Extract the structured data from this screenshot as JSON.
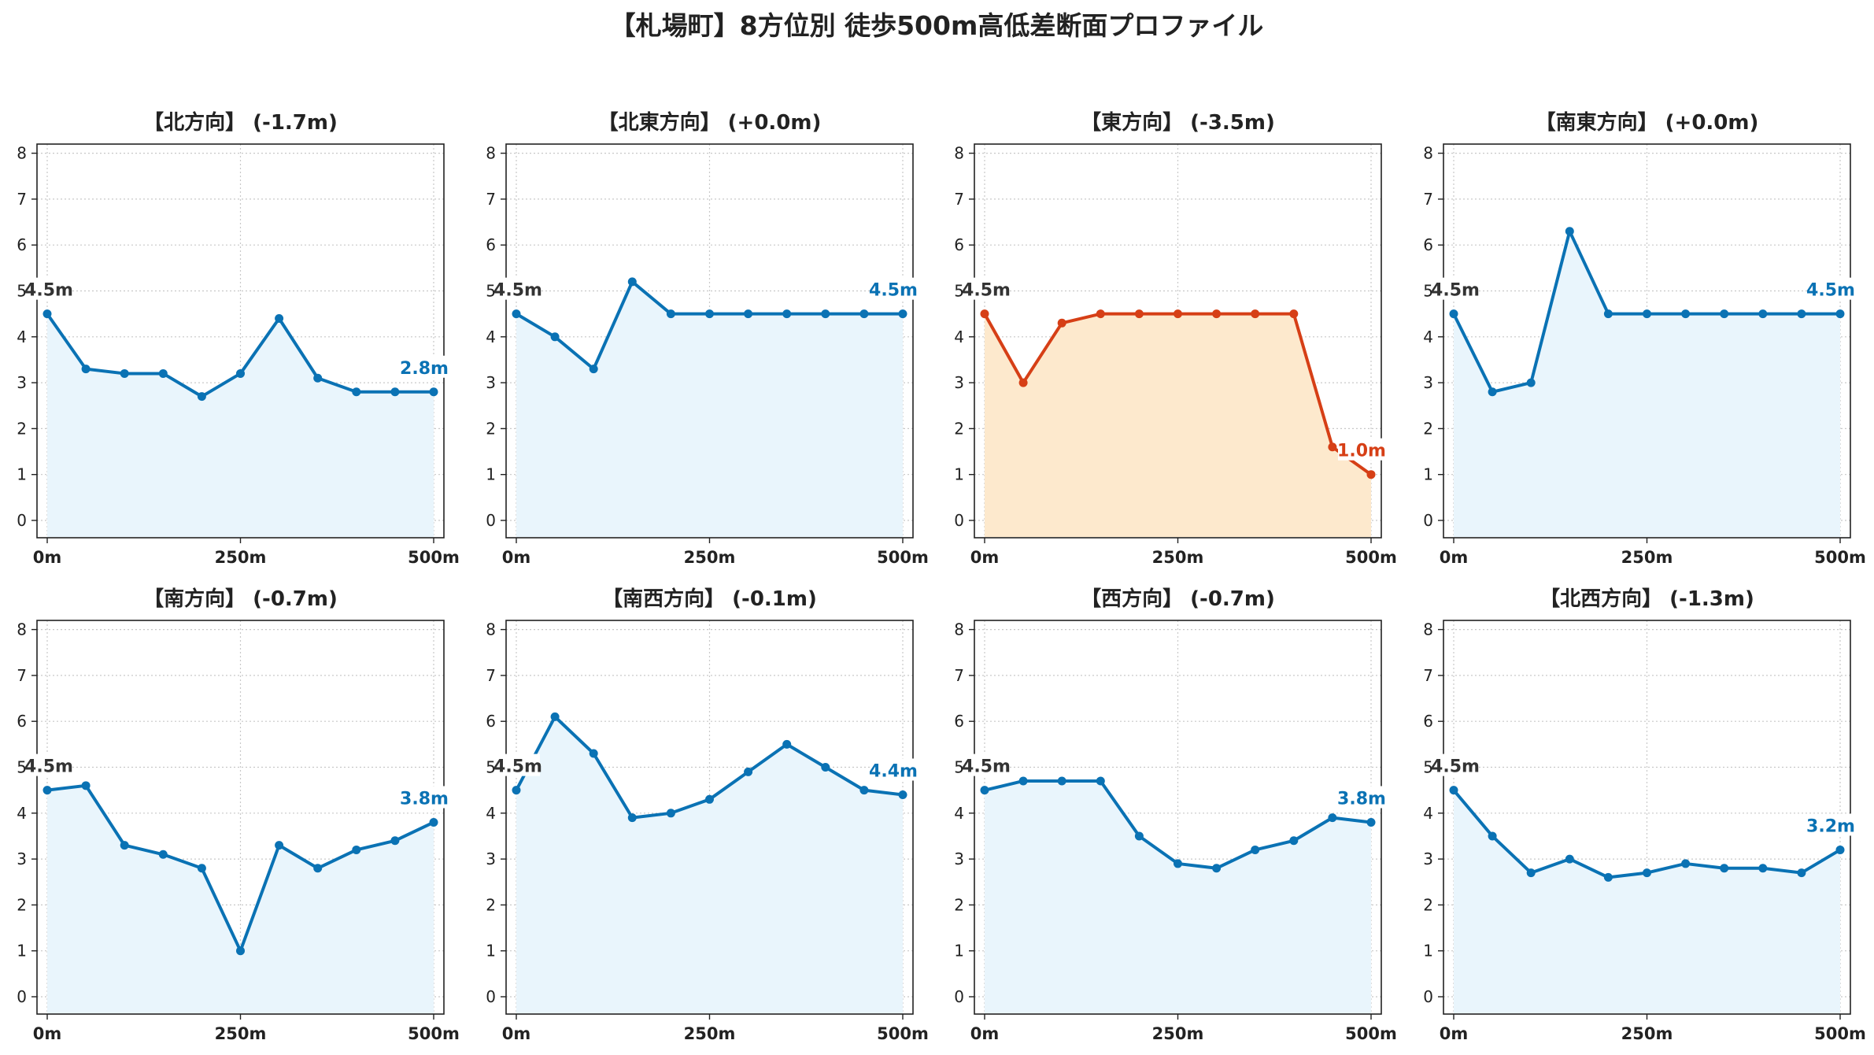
{
  "title": "【札場町】8方位別 徒歩500m高低差断面プロファイル",
  "colors": {
    "normal_line": "#0a72b4",
    "normal_fill": "#e9f5fc",
    "highlight_line": "#d63f16",
    "highlight_fill": "#fde9cd",
    "start_label": "#333333",
    "grid": "#c8c8c8"
  },
  "chart_data": [
    {
      "type": "area",
      "title": "【北方向】 (-1.7m)",
      "x": [
        0,
        50,
        100,
        150,
        200,
        250,
        300,
        350,
        400,
        450,
        500
      ],
      "values": [
        4.5,
        3.3,
        3.2,
        3.2,
        2.7,
        3.2,
        4.4,
        3.1,
        2.8,
        2.8,
        2.8
      ],
      "start_label": "4.5m",
      "end_label": "2.8m",
      "highlight": false,
      "xticks": [
        "0m",
        "250m",
        "500m"
      ],
      "yticks": [
        "0",
        "1",
        "2",
        "3",
        "4",
        "5",
        "6",
        "7",
        "8"
      ],
      "xlim": [
        0,
        500
      ],
      "ylim": [
        0,
        8
      ],
      "grid": true
    },
    {
      "type": "area",
      "title": "【北東方向】 (+0.0m)",
      "x": [
        0,
        50,
        100,
        150,
        200,
        250,
        300,
        350,
        400,
        450,
        500
      ],
      "values": [
        4.5,
        4.0,
        3.3,
        5.2,
        4.5,
        4.5,
        4.5,
        4.5,
        4.5,
        4.5,
        4.5
      ],
      "start_label": "4.5m",
      "end_label": "4.5m",
      "highlight": false,
      "xticks": [
        "0m",
        "250m",
        "500m"
      ],
      "yticks": [
        "0",
        "1",
        "2",
        "3",
        "4",
        "5",
        "6",
        "7",
        "8"
      ],
      "xlim": [
        0,
        500
      ],
      "ylim": [
        0,
        8
      ],
      "grid": true
    },
    {
      "type": "area",
      "title": "【東方向】 (-3.5m)",
      "x": [
        0,
        50,
        100,
        150,
        200,
        250,
        300,
        350,
        400,
        450,
        500
      ],
      "values": [
        4.5,
        3.0,
        4.3,
        4.5,
        4.5,
        4.5,
        4.5,
        4.5,
        4.5,
        1.6,
        1.0
      ],
      "start_label": "4.5m",
      "end_label": "1.0m",
      "highlight": true,
      "xticks": [
        "0m",
        "250m",
        "500m"
      ],
      "yticks": [
        "0",
        "1",
        "2",
        "3",
        "4",
        "5",
        "6",
        "7",
        "8"
      ],
      "xlim": [
        0,
        500
      ],
      "ylim": [
        0,
        8
      ],
      "grid": true
    },
    {
      "type": "area",
      "title": "【南東方向】 (+0.0m)",
      "x": [
        0,
        50,
        100,
        150,
        200,
        250,
        300,
        350,
        400,
        450,
        500
      ],
      "values": [
        4.5,
        2.8,
        3.0,
        6.3,
        4.5,
        4.5,
        4.5,
        4.5,
        4.5,
        4.5,
        4.5
      ],
      "start_label": "4.5m",
      "end_label": "4.5m",
      "highlight": false,
      "xticks": [
        "0m",
        "250m",
        "500m"
      ],
      "yticks": [
        "0",
        "1",
        "2",
        "3",
        "4",
        "5",
        "6",
        "7",
        "8"
      ],
      "xlim": [
        0,
        500
      ],
      "ylim": [
        0,
        8
      ],
      "grid": true
    },
    {
      "type": "area",
      "title": "【南方向】 (-0.7m)",
      "x": [
        0,
        50,
        100,
        150,
        200,
        250,
        300,
        350,
        400,
        450,
        500
      ],
      "values": [
        4.5,
        4.6,
        3.3,
        3.1,
        2.8,
        1.0,
        3.3,
        2.8,
        3.2,
        3.4,
        3.8
      ],
      "start_label": "4.5m",
      "end_label": "3.8m",
      "highlight": false,
      "xticks": [
        "0m",
        "250m",
        "500m"
      ],
      "yticks": [
        "0",
        "1",
        "2",
        "3",
        "4",
        "5",
        "6",
        "7",
        "8"
      ],
      "xlim": [
        0,
        500
      ],
      "ylim": [
        0,
        8
      ],
      "grid": true
    },
    {
      "type": "area",
      "title": "【南西方向】 (-0.1m)",
      "x": [
        0,
        50,
        100,
        150,
        200,
        250,
        300,
        350,
        400,
        450,
        500
      ],
      "values": [
        4.5,
        6.1,
        5.3,
        3.9,
        4.0,
        4.3,
        4.9,
        5.5,
        5.0,
        4.5,
        4.4
      ],
      "start_label": "4.5m",
      "end_label": "4.4m",
      "highlight": false,
      "xticks": [
        "0m",
        "250m",
        "500m"
      ],
      "yticks": [
        "0",
        "1",
        "2",
        "3",
        "4",
        "5",
        "6",
        "7",
        "8"
      ],
      "xlim": [
        0,
        500
      ],
      "ylim": [
        0,
        8
      ],
      "grid": true
    },
    {
      "type": "area",
      "title": "【西方向】 (-0.7m)",
      "x": [
        0,
        50,
        100,
        150,
        200,
        250,
        300,
        350,
        400,
        450,
        500
      ],
      "values": [
        4.5,
        4.7,
        4.7,
        4.7,
        3.5,
        2.9,
        2.8,
        3.2,
        3.4,
        3.9,
        3.8
      ],
      "start_label": "4.5m",
      "end_label": "3.8m",
      "highlight": false,
      "xticks": [
        "0m",
        "250m",
        "500m"
      ],
      "yticks": [
        "0",
        "1",
        "2",
        "3",
        "4",
        "5",
        "6",
        "7",
        "8"
      ],
      "xlim": [
        0,
        500
      ],
      "ylim": [
        0,
        8
      ],
      "grid": true
    },
    {
      "type": "area",
      "title": "【北西方向】 (-1.3m)",
      "x": [
        0,
        50,
        100,
        150,
        200,
        250,
        300,
        350,
        400,
        450,
        500
      ],
      "values": [
        4.5,
        3.5,
        2.7,
        3.0,
        2.6,
        2.7,
        2.9,
        2.8,
        2.8,
        2.7,
        3.2
      ],
      "start_label": "4.5m",
      "end_label": "3.2m",
      "highlight": false,
      "xticks": [
        "0m",
        "250m",
        "500m"
      ],
      "yticks": [
        "0",
        "1",
        "2",
        "3",
        "4",
        "5",
        "6",
        "7",
        "8"
      ],
      "xlim": [
        0,
        500
      ],
      "ylim": [
        0,
        8
      ],
      "grid": true
    }
  ]
}
